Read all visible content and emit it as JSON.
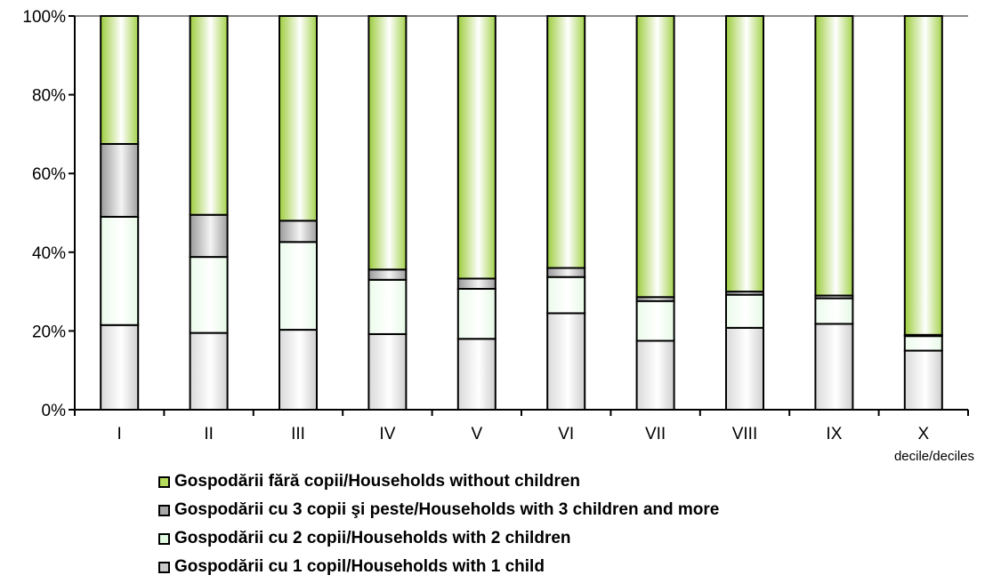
{
  "chart_data": {
    "type": "bar",
    "stacked": true,
    "categories": [
      "I",
      "II",
      "III",
      "IV",
      "V",
      "VI",
      "VII",
      "VIII",
      "IX",
      "X"
    ],
    "x_unit_label": "decile/deciles",
    "ylim": [
      0,
      100
    ],
    "yticks": [
      "0%",
      "20%",
      "40%",
      "60%",
      "80%",
      "100%"
    ],
    "series": [
      {
        "name": "Gospodării cu 1 copil/Households with 1 child",
        "color": "#c8c8c8",
        "values": [
          21.5,
          19.5,
          20.3,
          19.2,
          18.0,
          24.5,
          17.5,
          20.8,
          21.8,
          15.0
        ]
      },
      {
        "name": "Gospodării cu 2 copii/Households with 2 children",
        "color": "#d8f8d8",
        "values": [
          27.5,
          19.3,
          22.3,
          13.8,
          12.7,
          9.2,
          10.1,
          8.4,
          6.5,
          3.7
        ]
      },
      {
        "name": "Gospodării cu 3 copii şi peste/Households with 3 children and more",
        "color": "#a8a8a8",
        "values": [
          18.5,
          10.7,
          5.4,
          2.6,
          2.6,
          2.3,
          1.0,
          0.8,
          0.7,
          0.3
        ]
      },
      {
        "name": "Gospodării fără copii/Households without children",
        "color": "#9acd32",
        "values": [
          32.5,
          50.5,
          52.0,
          64.4,
          66.7,
          64.0,
          71.4,
          70.0,
          71.0,
          81.0
        ]
      }
    ],
    "legend_order": [
      3,
      2,
      1,
      0
    ],
    "legend_position": "bottom"
  }
}
